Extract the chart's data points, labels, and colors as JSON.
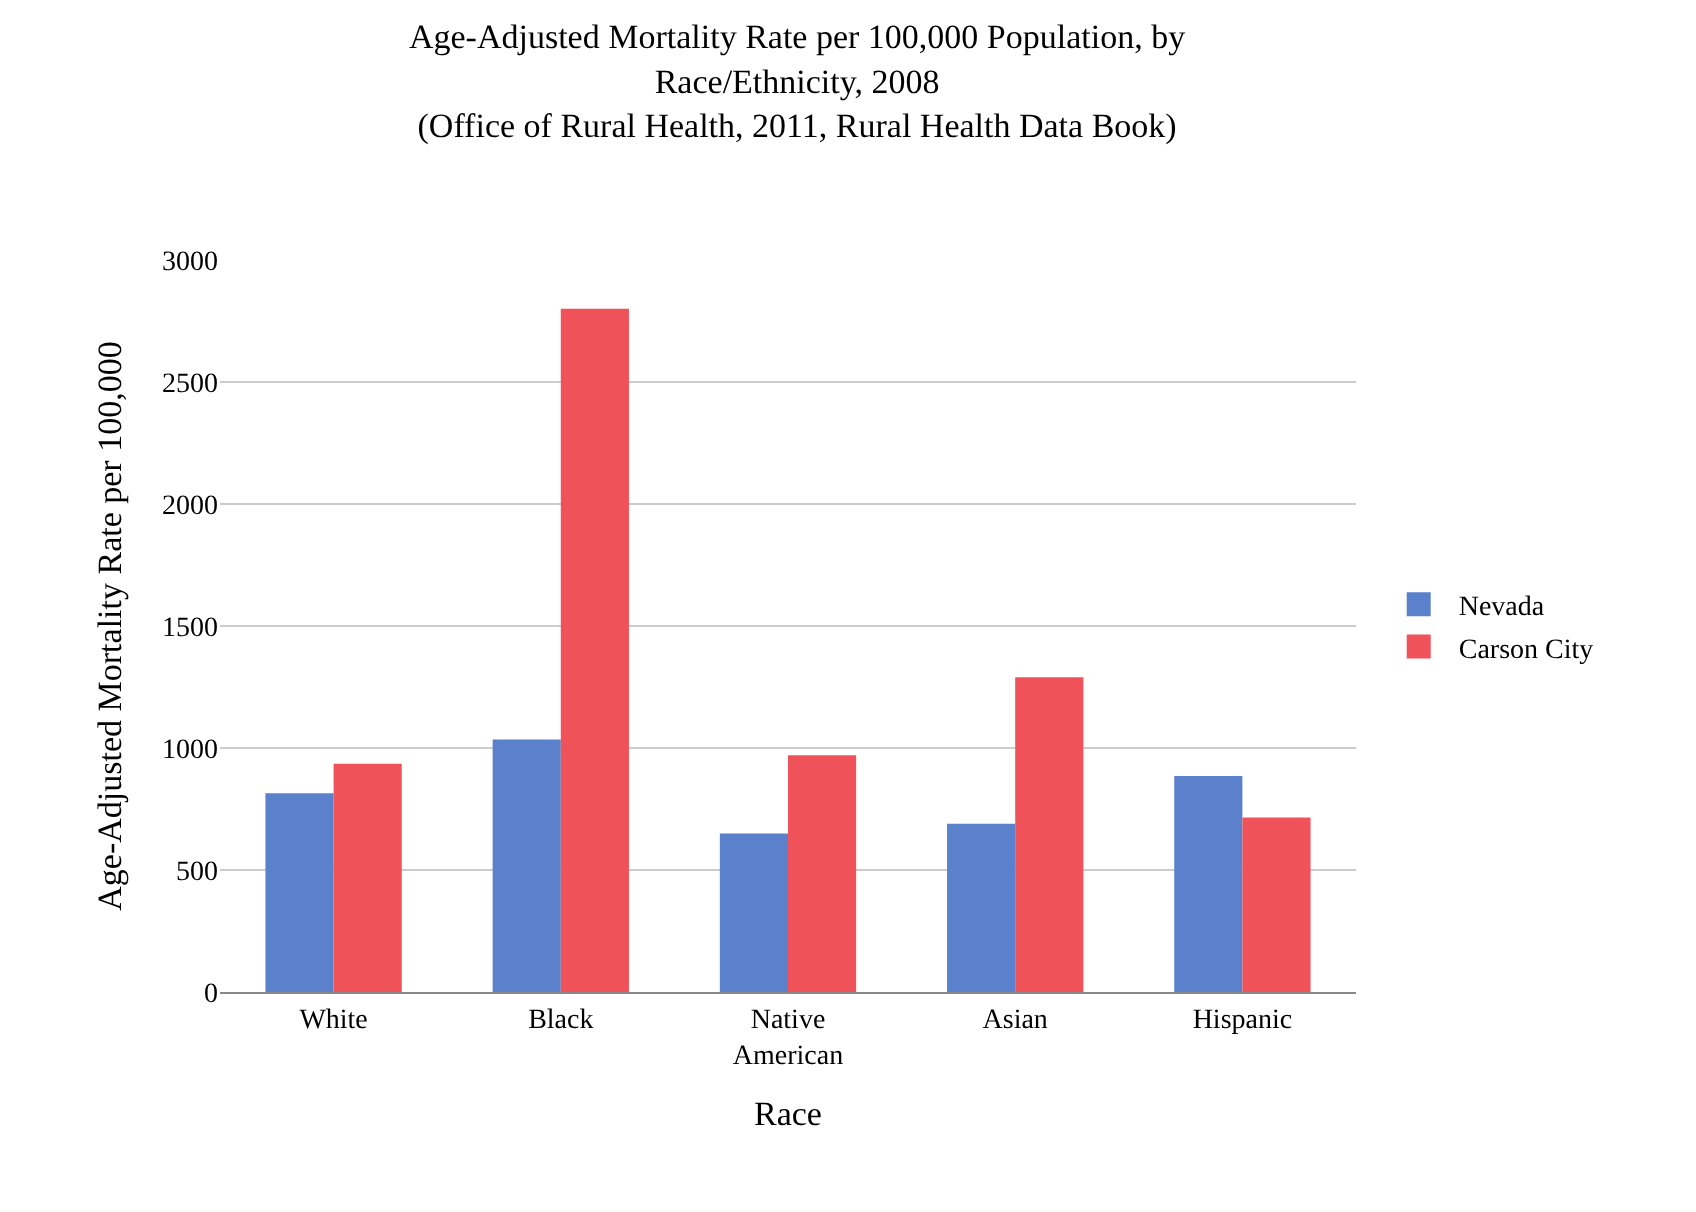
{
  "chart_data": {
    "type": "bar",
    "title": "Age-Adjusted Mortality Rate per 100,000 Population, by\nRace/Ethnicity, 2008\n(Office of Rural Health, 2011, Rural Health Data Book)",
    "xlabel": "Race",
    "ylabel": "Age-Adjusted Mortality Rate per 100,000",
    "categories": [
      "White",
      "Black",
      "Native American",
      "Asian",
      "Hispanic"
    ],
    "series": [
      {
        "name": "Nevada",
        "color": "#5b80cc",
        "values": [
          815,
          1035,
          650,
          690,
          885
        ]
      },
      {
        "name": "Carson City",
        "color": "#f0525a",
        "values": [
          935,
          2800,
          970,
          1290,
          715
        ]
      }
    ],
    "ylim": [
      0,
      3000
    ],
    "yticks": [
      0,
      500,
      1000,
      1500,
      2000,
      2500,
      3000
    ],
    "grid": "y",
    "legend": "right"
  }
}
